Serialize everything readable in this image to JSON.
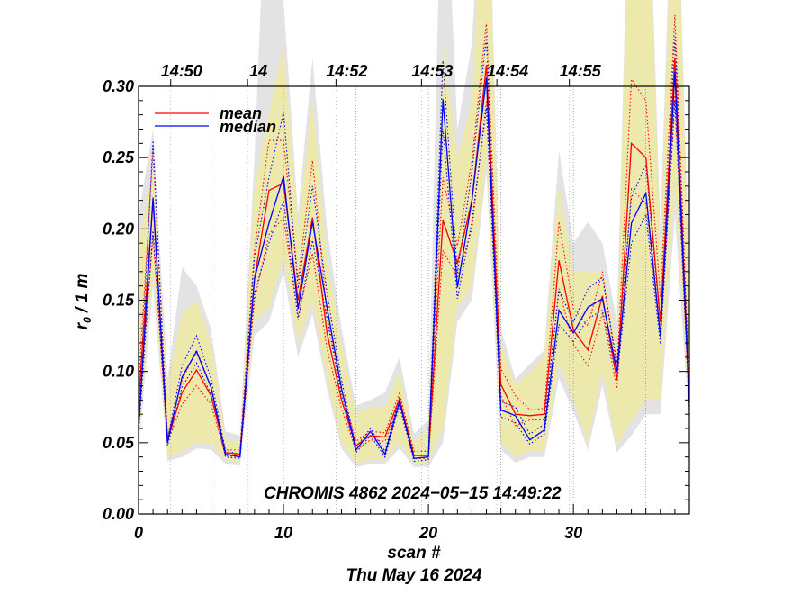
{
  "chart_data": {
    "type": "line",
    "x": [
      0,
      1,
      2,
      3,
      4,
      5,
      6,
      7,
      8,
      9,
      10,
      11,
      12,
      13,
      14,
      15,
      16,
      17,
      18,
      19,
      20,
      21,
      22,
      23,
      24,
      25,
      26,
      27,
      28,
      29,
      30,
      31,
      32,
      33,
      34,
      35,
      36,
      37,
      38
    ],
    "series": [
      {
        "name": "mean",
        "color": "#ff0000",
        "style": "solid",
        "values": [
          0.08,
          0.22,
          0.052,
          0.085,
          0.101,
          0.083,
          0.043,
          0.042,
          0.165,
          0.227,
          0.232,
          0.15,
          0.208,
          0.127,
          0.08,
          0.048,
          0.055,
          0.054,
          0.081,
          0.041,
          0.041,
          0.206,
          0.176,
          0.22,
          0.315,
          0.091,
          0.07,
          0.069,
          0.07,
          0.178,
          0.129,
          0.115,
          0.153,
          0.094,
          0.26,
          0.25,
          0.135,
          0.32,
          0.08
        ]
      },
      {
        "name": "median",
        "color": "#0000ff",
        "style": "solid",
        "values": [
          0.06,
          0.222,
          0.05,
          0.096,
          0.114,
          0.089,
          0.042,
          0.04,
          0.165,
          0.204,
          0.237,
          0.144,
          0.205,
          0.145,
          0.088,
          0.045,
          0.058,
          0.042,
          0.079,
          0.039,
          0.04,
          0.291,
          0.159,
          0.22,
          0.306,
          0.073,
          0.069,
          0.052,
          0.059,
          0.143,
          0.127,
          0.145,
          0.151,
          0.1,
          0.204,
          0.225,
          0.125,
          0.31,
          0.078
        ]
      }
    ],
    "dotted_series": [
      {
        "color": "#ff0000",
        "upper": [
          0.09,
          0.255,
          0.054,
          0.094,
          0.115,
          0.089,
          0.045,
          0.045,
          0.185,
          0.262,
          0.262,
          0.164,
          0.248,
          0.139,
          0.087,
          0.051,
          0.058,
          0.057,
          0.085,
          0.044,
          0.044,
          0.236,
          0.188,
          0.248,
          0.345,
          0.102,
          0.083,
          0.073,
          0.074,
          0.205,
          0.144,
          0.132,
          0.17,
          0.101,
          0.305,
          0.29,
          0.152,
          0.35,
          0.09
        ],
        "lower": [
          0.072,
          0.195,
          0.05,
          0.077,
          0.09,
          0.077,
          0.041,
          0.04,
          0.15,
          0.196,
          0.208,
          0.139,
          0.183,
          0.116,
          0.074,
          0.045,
          0.052,
          0.051,
          0.077,
          0.039,
          0.039,
          0.185,
          0.166,
          0.2,
          0.29,
          0.083,
          0.062,
          0.066,
          0.066,
          0.158,
          0.119,
          0.104,
          0.141,
          0.088,
          0.228,
          0.218,
          0.124,
          0.295,
          0.072
        ]
      },
      {
        "color": "#0000ff",
        "upper": [
          0.066,
          0.262,
          0.052,
          0.104,
          0.125,
          0.095,
          0.044,
          0.042,
          0.18,
          0.236,
          0.282,
          0.158,
          0.23,
          0.155,
          0.094,
          0.047,
          0.06,
          0.044,
          0.082,
          0.041,
          0.041,
          0.318,
          0.169,
          0.24,
          0.335,
          0.079,
          0.075,
          0.056,
          0.063,
          0.157,
          0.135,
          0.158,
          0.166,
          0.106,
          0.222,
          0.245,
          0.133,
          0.335,
          0.084
        ],
        "lower": [
          0.056,
          0.2,
          0.048,
          0.089,
          0.106,
          0.084,
          0.04,
          0.039,
          0.155,
          0.19,
          0.22,
          0.136,
          0.192,
          0.137,
          0.083,
          0.043,
          0.055,
          0.04,
          0.076,
          0.037,
          0.038,
          0.27,
          0.151,
          0.205,
          0.285,
          0.068,
          0.064,
          0.049,
          0.056,
          0.133,
          0.121,
          0.137,
          0.143,
          0.095,
          0.19,
          0.21,
          0.119,
          0.29,
          0.073
        ]
      }
    ],
    "band_yellow": {
      "upper": [
        0.19,
        0.24,
        0.09,
        0.14,
        0.15,
        0.12,
        0.052,
        0.05,
        0.23,
        0.28,
        0.33,
        0.2,
        0.29,
        0.18,
        0.12,
        0.07,
        0.075,
        0.075,
        0.1,
        0.05,
        0.06,
        0.33,
        0.25,
        0.29,
        0.5,
        0.12,
        0.09,
        0.1,
        0.11,
        0.23,
        0.17,
        0.17,
        0.17,
        0.12,
        0.5,
        0.5,
        0.18,
        0.5,
        0.15
      ],
      "lower": [
        0.05,
        0.17,
        0.04,
        0.044,
        0.05,
        0.049,
        0.038,
        0.036,
        0.135,
        0.145,
        0.18,
        0.12,
        0.15,
        0.095,
        0.05,
        0.036,
        0.038,
        0.038,
        0.05,
        0.036,
        0.036,
        0.06,
        0.145,
        0.16,
        0.25,
        0.05,
        0.04,
        0.044,
        0.044,
        0.105,
        0.08,
        0.05,
        0.1,
        0.048,
        0.065,
        0.08,
        0.08,
        0.23,
        0.07
      ]
    },
    "band_gray": {
      "upper": [
        0.21,
        0.27,
        0.095,
        0.173,
        0.16,
        0.13,
        0.058,
        0.055,
        0.25,
        0.5,
        0.36,
        0.21,
        0.32,
        0.2,
        0.13,
        0.076,
        0.08,
        0.085,
        0.11,
        0.056,
        0.066,
        0.5,
        0.27,
        0.33,
        0.52,
        0.13,
        0.095,
        0.105,
        0.115,
        0.255,
        0.19,
        0.205,
        0.19,
        0.135,
        0.52,
        0.52,
        0.2,
        0.52,
        0.16
      ],
      "lower": [
        0.045,
        0.16,
        0.037,
        0.04,
        0.046,
        0.045,
        0.035,
        0.034,
        0.125,
        0.135,
        0.17,
        0.11,
        0.14,
        0.088,
        0.046,
        0.033,
        0.035,
        0.035,
        0.046,
        0.033,
        0.033,
        0.05,
        0.135,
        0.15,
        0.24,
        0.045,
        0.036,
        0.04,
        0.04,
        0.095,
        0.072,
        0.045,
        0.09,
        0.043,
        0.055,
        0.07,
        0.07,
        0.21,
        0.062
      ]
    },
    "top_time_labels": [
      {
        "label": "14:50",
        "x": 1.6
      },
      {
        "label": "14",
        "x": 6.9
      },
      {
        "label": "14:52",
        "x": 13.0
      },
      {
        "label": "14:53",
        "x": 18.9
      },
      {
        "label": "14:54",
        "x": 24.1
      },
      {
        "label": "14:55",
        "x": 29.1
      }
    ],
    "vertical_dotted_x": [
      5,
      10,
      15,
      20,
      25,
      30,
      35
    ],
    "xlim": [
      0,
      38
    ],
    "ylim": [
      0.0,
      0.3
    ],
    "xticks": [
      "0",
      "10",
      "20",
      "30"
    ],
    "yticks": [
      "0.00",
      "0.05",
      "0.10",
      "0.15",
      "0.20",
      "0.25",
      "0.30"
    ],
    "xlabel": "scan #",
    "date_label": "Thu May 16 2024",
    "ylabel_main": "r",
    "ylabel_sub": "0",
    "ylabel_rest": " / 1 m",
    "annotation": "CHROMIS 4862 2024−05−15 14:49:22",
    "legend": [
      {
        "label": "mean",
        "color": "#ff0000"
      },
      {
        "label": "median",
        "color": "#0000ff"
      }
    ],
    "legend_position": "top-left",
    "colors": {
      "band_yellow": "#ede8ab",
      "band_gray": "#e3e3e3"
    }
  }
}
